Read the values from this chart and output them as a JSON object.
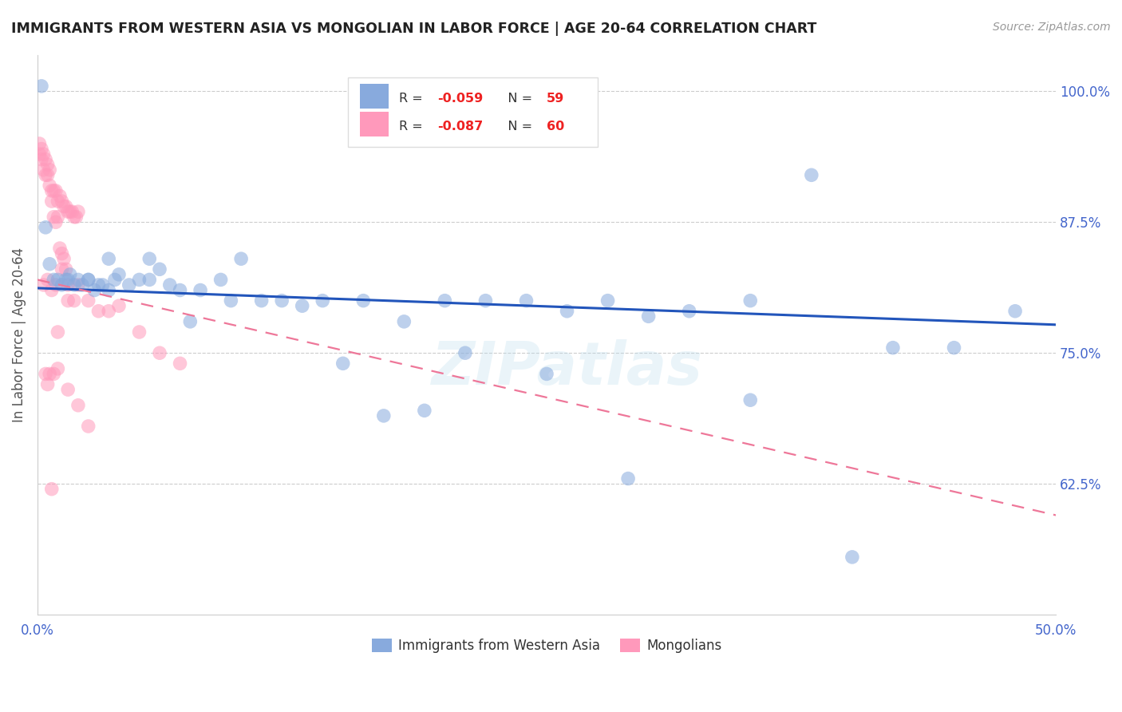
{
  "title": "IMMIGRANTS FROM WESTERN ASIA VS MONGOLIAN IN LABOR FORCE | AGE 20-64 CORRELATION CHART",
  "source": "Source: ZipAtlas.com",
  "ylabel": "In Labor Force | Age 20-64",
  "xlim": [
    0.0,
    0.5
  ],
  "ylim": [
    0.5,
    1.035
  ],
  "yticks_right": [
    0.625,
    0.75,
    0.875,
    1.0
  ],
  "yticklabels_right": [
    "62.5%",
    "75.0%",
    "87.5%",
    "100.0%"
  ],
  "legend_r1": "-0.059",
  "legend_n1": "59",
  "legend_r2": "-0.087",
  "legend_n2": "60",
  "legend_label1": "Immigrants from Western Asia",
  "legend_label2": "Mongolians",
  "color_blue": "#88AADD",
  "color_pink": "#FF99BB",
  "color_line_blue": "#2255BB",
  "color_line_pink": "#EE7799",
  "watermark": "ZIPatlas",
  "blue_x": [
    0.002,
    0.004,
    0.006,
    0.008,
    0.01,
    0.012,
    0.014,
    0.016,
    0.018,
    0.02,
    0.022,
    0.025,
    0.028,
    0.03,
    0.032,
    0.035,
    0.038,
    0.04,
    0.045,
    0.05,
    0.055,
    0.06,
    0.065,
    0.07,
    0.08,
    0.09,
    0.1,
    0.12,
    0.14,
    0.16,
    0.18,
    0.2,
    0.22,
    0.24,
    0.26,
    0.28,
    0.3,
    0.32,
    0.35,
    0.38,
    0.42,
    0.45,
    0.48,
    0.015,
    0.025,
    0.035,
    0.055,
    0.075,
    0.095,
    0.11,
    0.13,
    0.15,
    0.17,
    0.19,
    0.21,
    0.25,
    0.29,
    0.35,
    0.4
  ],
  "blue_y": [
    1.005,
    0.87,
    0.835,
    0.82,
    0.82,
    0.815,
    0.82,
    0.825,
    0.815,
    0.82,
    0.815,
    0.82,
    0.81,
    0.815,
    0.815,
    0.81,
    0.82,
    0.825,
    0.815,
    0.82,
    0.82,
    0.83,
    0.815,
    0.81,
    0.81,
    0.82,
    0.84,
    0.8,
    0.8,
    0.8,
    0.78,
    0.8,
    0.8,
    0.8,
    0.79,
    0.8,
    0.785,
    0.79,
    0.8,
    0.92,
    0.755,
    0.755,
    0.79,
    0.82,
    0.82,
    0.84,
    0.84,
    0.78,
    0.8,
    0.8,
    0.795,
    0.74,
    0.69,
    0.695,
    0.75,
    0.73,
    0.63,
    0.705,
    0.555
  ],
  "pink_x": [
    0.001,
    0.002,
    0.003,
    0.004,
    0.005,
    0.006,
    0.007,
    0.008,
    0.009,
    0.01,
    0.011,
    0.012,
    0.013,
    0.014,
    0.015,
    0.016,
    0.017,
    0.018,
    0.019,
    0.02,
    0.001,
    0.002,
    0.003,
    0.004,
    0.005,
    0.006,
    0.007,
    0.008,
    0.009,
    0.01,
    0.011,
    0.012,
    0.013,
    0.014,
    0.015,
    0.003,
    0.005,
    0.007,
    0.009,
    0.012,
    0.015,
    0.018,
    0.02,
    0.025,
    0.03,
    0.035,
    0.04,
    0.05,
    0.06,
    0.07,
    0.004,
    0.006,
    0.008,
    0.01,
    0.015,
    0.02,
    0.025,
    0.01,
    0.005,
    0.007
  ],
  "pink_y": [
    0.94,
    0.935,
    0.925,
    0.92,
    0.92,
    0.91,
    0.905,
    0.905,
    0.905,
    0.895,
    0.9,
    0.895,
    0.89,
    0.89,
    0.885,
    0.885,
    0.885,
    0.88,
    0.88,
    0.885,
    0.95,
    0.945,
    0.94,
    0.935,
    0.93,
    0.925,
    0.895,
    0.88,
    0.875,
    0.88,
    0.85,
    0.845,
    0.84,
    0.83,
    0.815,
    0.815,
    0.82,
    0.81,
    0.815,
    0.83,
    0.8,
    0.8,
    0.815,
    0.8,
    0.79,
    0.79,
    0.795,
    0.77,
    0.75,
    0.74,
    0.73,
    0.73,
    0.73,
    0.735,
    0.715,
    0.7,
    0.68,
    0.77,
    0.72,
    0.62
  ],
  "blue_trendline": [
    0.0,
    0.5,
    0.812,
    0.777
  ],
  "pink_trendline": [
    0.0,
    0.5,
    0.82,
    0.595
  ]
}
